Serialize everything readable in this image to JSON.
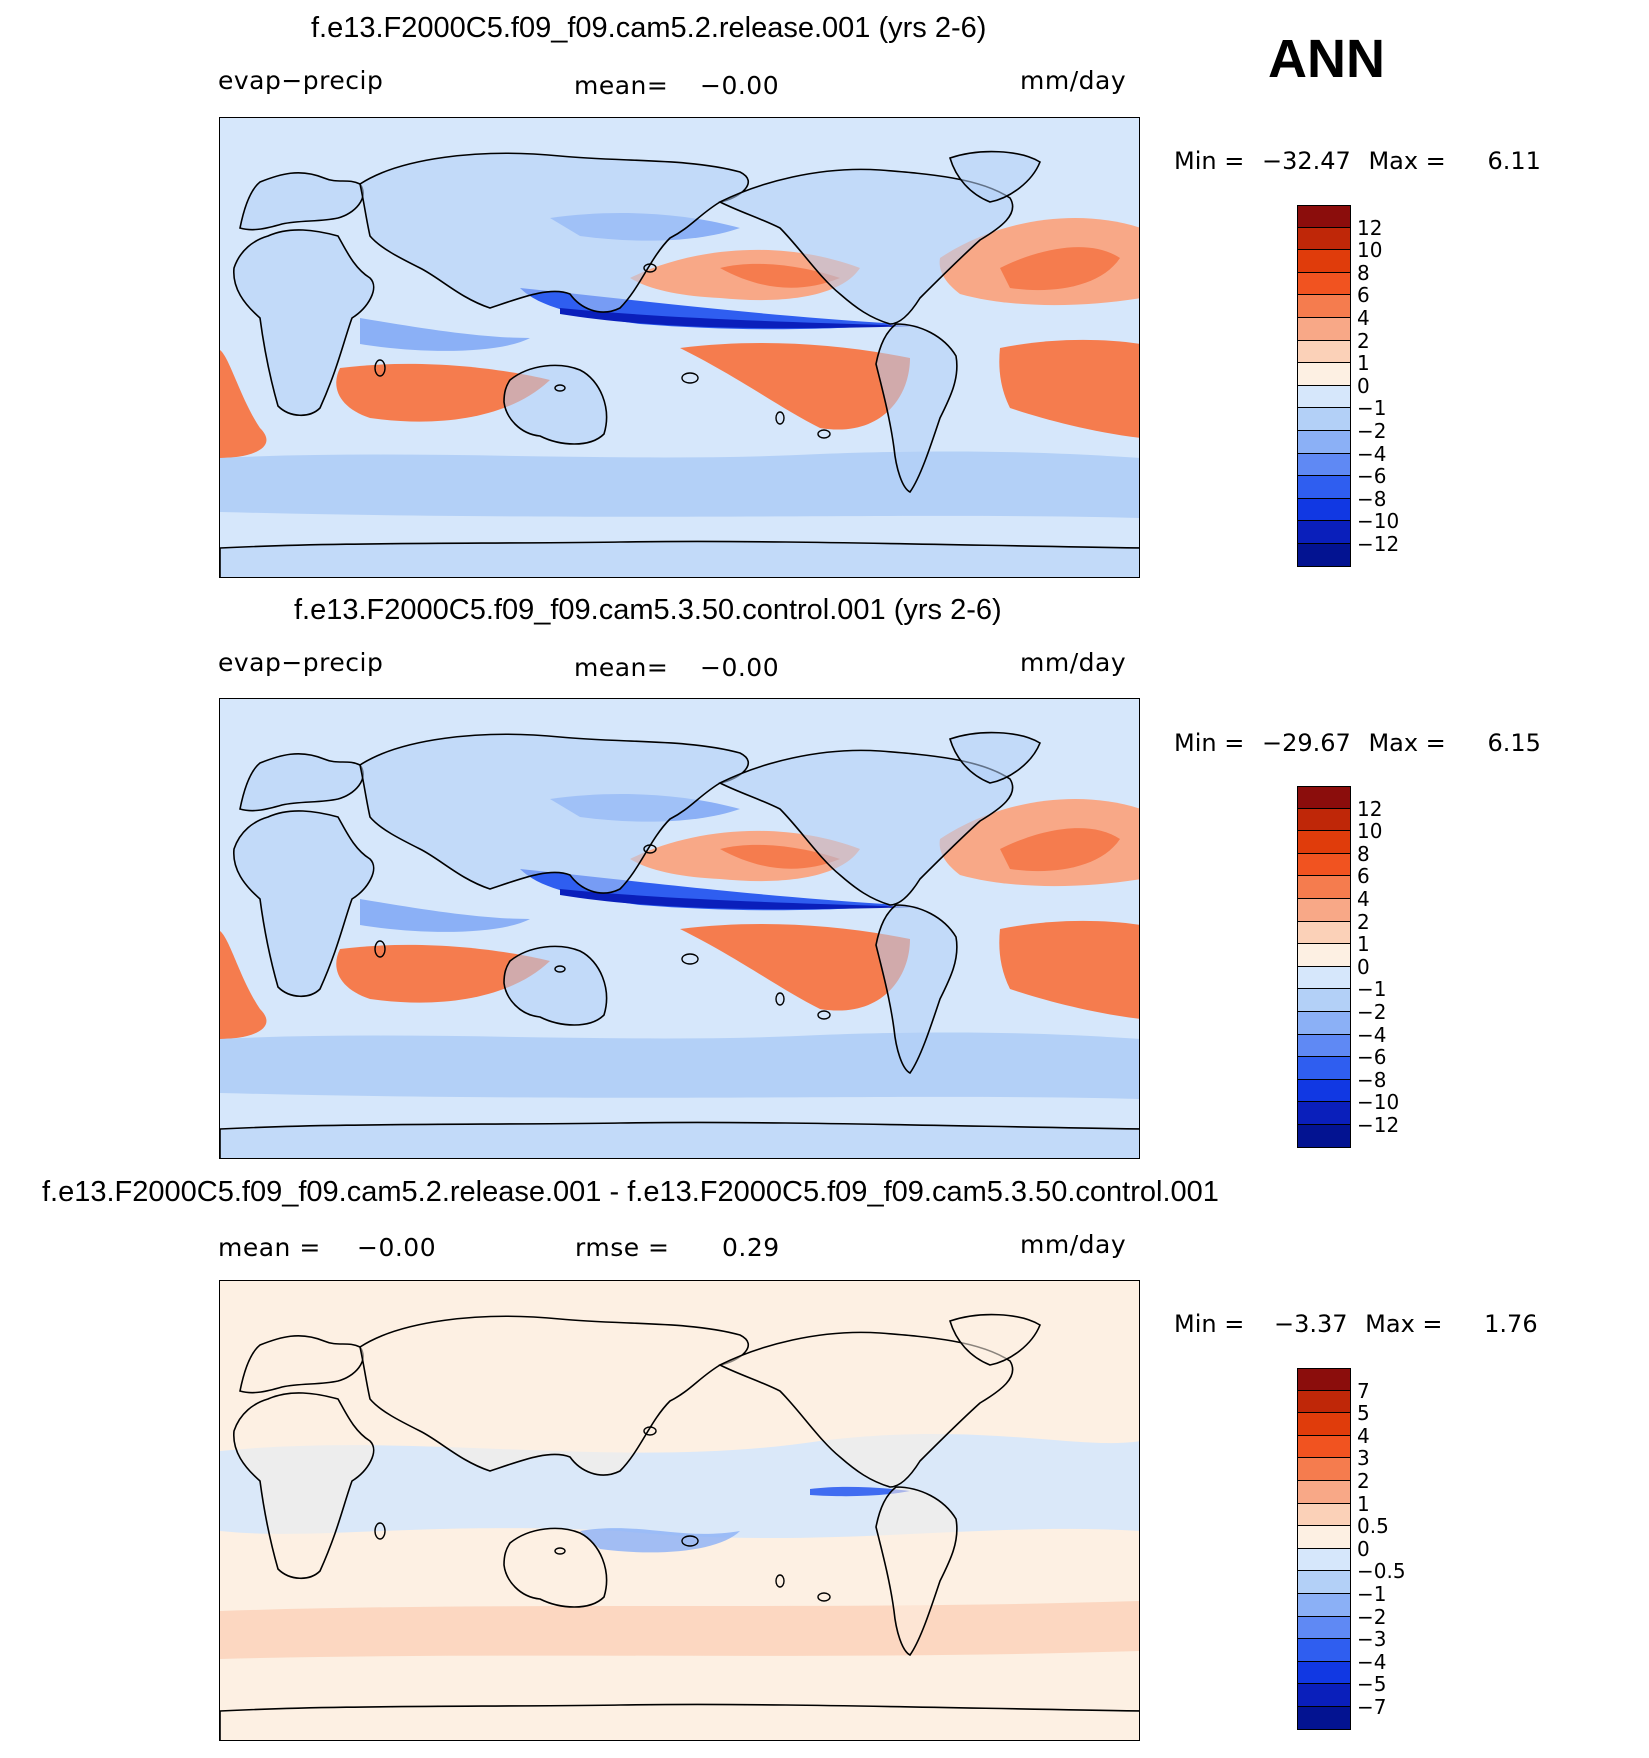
{
  "season": "ANN",
  "panels": [
    {
      "title": "f.e13.F2000C5.f09_f09.cam5.2.release.001 (yrs 2-6)",
      "left_label": "evap−precip",
      "mean_label": "mean=",
      "mean_value": "−0.00",
      "units": "mm/day",
      "min_label": "Min  =",
      "min_value": "−32.47",
      "max_label": "Max  =",
      "max_value": "6.11",
      "colorbar": {
        "colors": [
          "#8b0d0c",
          "#bf2708",
          "#e03c0b",
          "#f15320",
          "#f57c4e",
          "#f8a887",
          "#fbd1b8",
          "#fdf0e3",
          "#d6e7fb",
          "#b3d0f7",
          "#8bb0f6",
          "#5f89f4",
          "#2f5ef0",
          "#1138e3",
          "#0a1fbb",
          "#031391"
        ],
        "ticks": [
          "12",
          "10",
          "8",
          "6",
          "4",
          "2",
          "1",
          "0",
          "−1",
          "−2",
          "−4",
          "−6",
          "−8",
          "−10",
          "−12"
        ]
      },
      "palette": {
        "ocean": "#d6e7fb",
        "pos1": "#fbd1b8",
        "pos2": "#f8a887",
        "pos3": "#f57c4e",
        "neg1": "#b3d0f7",
        "neg2": "#8bb0f6",
        "neg3": "#2f5ef0",
        "neg4": "#0a1fbb"
      },
      "map_caption": "evap-precip climatology field"
    },
    {
      "title": "f.e13.F2000C5.f09_f09.cam5.3.50.control.001 (yrs 2-6)",
      "left_label": "evap−precip",
      "mean_label": "mean=",
      "mean_value": "−0.00",
      "units": "mm/day",
      "min_label": "Min  =",
      "min_value": "−29.67",
      "max_label": "Max  =",
      "max_value": "6.15",
      "colorbar": {
        "colors": [
          "#8b0d0c",
          "#bf2708",
          "#e03c0b",
          "#f15320",
          "#f57c4e",
          "#f8a887",
          "#fbd1b8",
          "#fdf0e3",
          "#d6e7fb",
          "#b3d0f7",
          "#8bb0f6",
          "#5f89f4",
          "#2f5ef0",
          "#1138e3",
          "#0a1fbb",
          "#031391"
        ],
        "ticks": [
          "12",
          "10",
          "8",
          "6",
          "4",
          "2",
          "1",
          "0",
          "−1",
          "−2",
          "−4",
          "−6",
          "−8",
          "−10",
          "−12"
        ]
      },
      "palette": {
        "ocean": "#d6e7fb",
        "pos1": "#fbd1b8",
        "pos2": "#f8a887",
        "pos3": "#f57c4e",
        "neg1": "#b3d0f7",
        "neg2": "#8bb0f6",
        "neg3": "#2f5ef0",
        "neg4": "#0a1fbb"
      },
      "map_caption": "evap-precip climatology field"
    },
    {
      "title": "f.e13.F2000C5.f09_f09.cam5.2.release.001 - f.e13.F2000C5.f09_f09.cam5.3.50.control.001",
      "left_label": "mean  =",
      "mean_label": "rmse  =",
      "left_value": "−0.00",
      "mean_value": "0.29",
      "units": "mm/day",
      "min_label": "Min  =",
      "min_value": "−3.37",
      "max_label": "Max  =",
      "max_value": "1.76",
      "colorbar": {
        "colors": [
          "#8b0d0c",
          "#bf2708",
          "#e03c0b",
          "#f15320",
          "#f57c4e",
          "#f8a887",
          "#fbd1b8",
          "#fdf0e3",
          "#d6e7fb",
          "#b3d0f7",
          "#8bb0f6",
          "#5f89f4",
          "#2f5ef0",
          "#1138e3",
          "#0a1fbb",
          "#031391"
        ],
        "ticks": [
          "7",
          "5",
          "4",
          "3",
          "2",
          "1",
          "0.5",
          "0",
          "−0.5",
          "−1",
          "−2",
          "−3",
          "−4",
          "−5",
          "−7"
        ]
      },
      "palette": {
        "ocean": "#fdf0e3",
        "pos1": "#fbd1b8",
        "pos2": "#f8a887",
        "pos3": "#fbd1b8",
        "neg1": "#d6e7fb",
        "neg2": "#b3d0f7",
        "neg3": "#8bb0f6",
        "neg4": "#2f5ef0"
      },
      "map_caption": "difference field"
    }
  ]
}
